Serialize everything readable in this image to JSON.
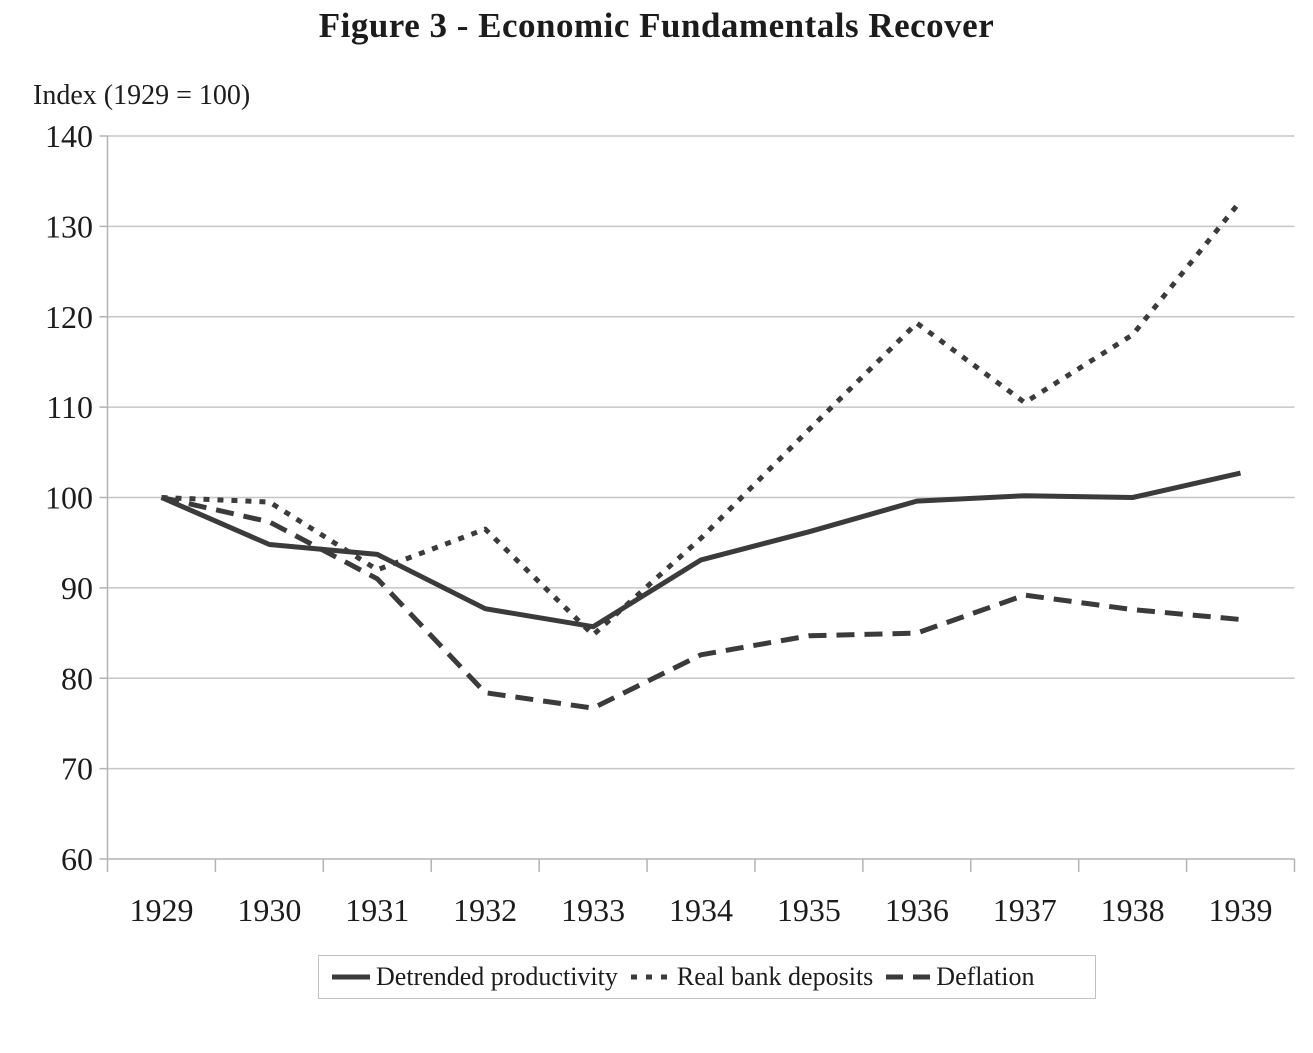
{
  "chart_data": {
    "type": "line",
    "title": "Figure 3 - Economic Fundamentals Recover",
    "y_axis_label": "Index (1929 = 100)",
    "x_labels": [
      "1929",
      "1930",
      "1931",
      "1932",
      "1933",
      "1934",
      "1935",
      "1936",
      "1937",
      "1938",
      "1939"
    ],
    "ylim": [
      60,
      140
    ],
    "ytick_step": 10,
    "grid": true,
    "legend_position": "bottom",
    "line_color": "#3b3b3b",
    "grid_color": "#c6c6c6",
    "axis_color": "#b3b3b3",
    "text_color": "#1c1c1c",
    "series": [
      {
        "name": "Detrended productivity",
        "style": "solid",
        "values": [
          100,
          94.8,
          93.7,
          87.7,
          85.7,
          93.1,
          96.2,
          99.6,
          100.2,
          100.0,
          102.7
        ]
      },
      {
        "name": "Real bank deposits",
        "style": "dotted",
        "values": [
          100,
          99.5,
          92.0,
          96.5,
          84.8,
          95.5,
          107.5,
          119.3,
          110.5,
          118.0,
          132.8
        ]
      },
      {
        "name": "Deflation",
        "style": "dashed",
        "values": [
          100,
          97.3,
          91.0,
          78.4,
          76.7,
          82.6,
          84.7,
          85.0,
          89.2,
          87.6,
          86.5
        ]
      }
    ]
  }
}
